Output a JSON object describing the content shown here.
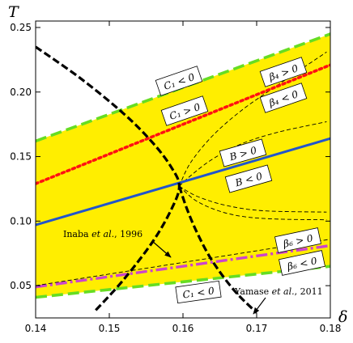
{
  "chart_data": {
    "type": "line",
    "xlabel": "δ",
    "ylabel": "T",
    "xlim": [
      0.14,
      0.18
    ],
    "ylim": [
      0.025,
      0.255
    ],
    "xticks": [
      "0.14",
      "0.15",
      "0.16",
      "0.17",
      "0.18"
    ],
    "yticks": [
      "0.05",
      "0.10",
      "0.15",
      "0.20",
      "0.25"
    ],
    "xtick_values": [
      0.14,
      0.15,
      0.16,
      0.17,
      0.18
    ],
    "ytick_values": [
      0.05,
      0.1,
      0.15,
      0.2,
      0.25
    ],
    "colors": {
      "fill": "#ffee00",
      "green": "#66dd22",
      "red": "#ff1111",
      "blue": "#2255cc",
      "purple": "#cc44cc",
      "black": "#000000"
    },
    "region": {
      "upper": {
        "x": [
          0.14,
          0.18
        ],
        "y": [
          0.162,
          0.245
        ]
      },
      "lower": {
        "x": [
          0.14,
          0.18
        ],
        "y": [
          0.041,
          0.065
        ]
      }
    },
    "lines": [
      {
        "key": "c1_upper",
        "color": "green",
        "style": "dashed",
        "x": [
          0.14,
          0.18
        ],
        "y": [
          0.162,
          0.245
        ]
      },
      {
        "key": "c1_lower",
        "color": "green",
        "style": "dashed",
        "x": [
          0.14,
          0.18
        ],
        "y": [
          0.041,
          0.065
        ]
      },
      {
        "key": "beta4",
        "color": "red",
        "style": "dotted",
        "x": [
          0.14,
          0.18
        ],
        "y": [
          0.129,
          0.221
        ]
      },
      {
        "key": "b",
        "color": "blue",
        "style": "solid",
        "x": [
          0.14,
          0.18
        ],
        "y": [
          0.097,
          0.164
        ]
      },
      {
        "key": "beta6",
        "color": "purple",
        "style": "dashdot",
        "x": [
          0.14,
          0.18
        ],
        "y": [
          0.049,
          0.081
        ]
      },
      {
        "key": "beta6_black",
        "color": "black",
        "style": "thin-dash",
        "x": [
          0.14,
          0.18
        ],
        "y": [
          0.05,
          0.086
        ]
      }
    ],
    "thin_curves": [
      {
        "x": [
          0.1595,
          0.161,
          0.164,
          0.168,
          0.173,
          0.1795
        ],
        "y": [
          0.127,
          0.145,
          0.166,
          0.186,
          0.206,
          0.231
        ]
      },
      {
        "x": [
          0.1595,
          0.161,
          0.164,
          0.168,
          0.173,
          0.1795
        ],
        "y": [
          0.127,
          0.135,
          0.148,
          0.16,
          0.169,
          0.177
        ]
      },
      {
        "x": [
          0.1595,
          0.162,
          0.166,
          0.171,
          0.1795
        ],
        "y": [
          0.127,
          0.119,
          0.112,
          0.108,
          0.107
        ]
      },
      {
        "x": [
          0.1595,
          0.162,
          0.166,
          0.171,
          0.1795
        ],
        "y": [
          0.127,
          0.115,
          0.106,
          0.102,
          0.101
        ]
      }
    ],
    "inaba_curve": {
      "x": [
        0.14,
        0.146,
        0.152,
        0.156,
        0.1585,
        0.1595,
        0.1585,
        0.156,
        0.152,
        0.148
      ],
      "y": [
        0.235,
        0.211,
        0.183,
        0.16,
        0.141,
        0.127,
        0.11,
        0.085,
        0.055,
        0.03
      ]
    },
    "yamase_curve": {
      "x": [
        0.1595,
        0.1605,
        0.162,
        0.164,
        0.167,
        0.17
      ],
      "y": [
        0.127,
        0.11,
        0.09,
        0.069,
        0.046,
        0.029
      ]
    },
    "labels": {
      "c1_upper": "C₁ < 0",
      "c1_mid": "C₁ > 0",
      "c1_lower": "C₁ < 0",
      "beta4_pos": "β₄ > 0",
      "beta4_neg": "β₄ < 0",
      "b_pos": "B > 0",
      "b_neg": "B < 0",
      "beta6_pos": "β₆ > 0",
      "beta6_neg": "β₆ < 0"
    },
    "annotations": {
      "inaba_prefix": "Inaba ",
      "inaba_em": "et al.",
      "inaba_suffix": ", 1996",
      "yamase_prefix": "Yamase ",
      "yamase_em": "et al.",
      "yamase_suffix": ", 2011"
    }
  }
}
